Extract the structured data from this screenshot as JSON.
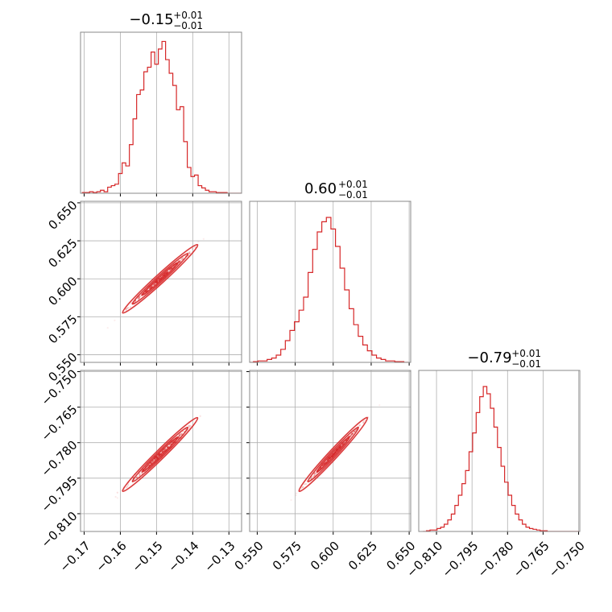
{
  "chart_data": {
    "type": "corner",
    "line_color": "#d62728",
    "grid": true,
    "parameters": [
      {
        "id": "p1",
        "title": {
          "value": "−0.15",
          "plus": "+0.01",
          "minus": "−0.01"
        },
        "range": [
          -0.171,
          -0.1265
        ],
        "ticks": [
          -0.17,
          -0.16,
          -0.15,
          -0.14,
          -0.13
        ],
        "tick_labels": [
          "−0.17",
          "−0.16",
          "−0.15",
          "−0.14",
          "−0.13"
        ],
        "hist_x": [
          -0.17,
          -0.169,
          -0.168,
          -0.167,
          -0.166,
          -0.165,
          -0.164,
          -0.163,
          -0.162,
          -0.161,
          -0.16,
          -0.159,
          -0.158,
          -0.157,
          -0.156,
          -0.155,
          -0.154,
          -0.153,
          -0.152,
          -0.151,
          -0.15,
          -0.149,
          -0.148,
          -0.147,
          -0.146,
          -0.145,
          -0.144,
          -0.143,
          -0.142,
          -0.141,
          -0.14,
          -0.139,
          -0.138,
          -0.137,
          -0.136,
          -0.135,
          -0.134,
          -0.133,
          -0.132,
          -0.131,
          -0.13,
          -0.129,
          -0.128,
          -0.127
        ],
        "hist_y": [
          0.005,
          0.005,
          0.01,
          0.005,
          0.01,
          0.02,
          0.01,
          0.04,
          0.05,
          0.06,
          0.13,
          0.2,
          0.18,
          0.32,
          0.49,
          0.65,
          0.68,
          0.8,
          0.83,
          0.93,
          0.85,
          0.95,
          1.0,
          0.88,
          0.79,
          0.71,
          0.55,
          0.57,
          0.34,
          0.17,
          0.11,
          0.12,
          0.05,
          0.035,
          0.02,
          0.01,
          0.01,
          0.005,
          0.005,
          0.005,
          0,
          0,
          0,
          0
        ],
        "hist_ymax": 1.05
      },
      {
        "id": "p2",
        "title": {
          "value": "0.60",
          "plus": "+0.01",
          "minus": "−0.01"
        },
        "range": [
          0.545,
          0.651
        ],
        "ticks": [
          0.55,
          0.575,
          0.6,
          0.625,
          0.65
        ],
        "tick_labels": [
          "0.550",
          "0.575",
          "0.600",
          "0.625",
          "0.650"
        ],
        "hist_x": [
          0.546,
          0.549,
          0.552,
          0.555,
          0.558,
          0.561,
          0.564,
          0.567,
          0.57,
          0.573,
          0.576,
          0.579,
          0.582,
          0.585,
          0.588,
          0.591,
          0.594,
          0.597,
          0.6,
          0.603,
          0.606,
          0.609,
          0.612,
          0.615,
          0.618,
          0.621,
          0.624,
          0.627,
          0.63,
          0.633,
          0.636,
          0.639,
          0.642,
          0.645,
          0.648
        ],
        "hist_y": [
          0,
          0.005,
          0.01,
          0.01,
          0.02,
          0.03,
          0.05,
          0.09,
          0.15,
          0.22,
          0.28,
          0.36,
          0.45,
          0.62,
          0.78,
          0.9,
          0.97,
          1.0,
          0.92,
          0.8,
          0.65,
          0.5,
          0.37,
          0.26,
          0.18,
          0.12,
          0.08,
          0.05,
          0.03,
          0.02,
          0.01,
          0.01,
          0.005,
          0.005,
          0
        ],
        "hist_ymax": 1.1
      },
      {
        "id": "p3",
        "title": {
          "value": "−0.79",
          "plus": "+0.01",
          "minus": "−0.01"
        },
        "range": [
          -0.8175,
          -0.7495
        ],
        "ticks": [
          -0.81,
          -0.795,
          -0.78,
          -0.765,
          -0.75
        ],
        "tick_labels": [
          "−0.810",
          "−0.795",
          "−0.780",
          "−0.765",
          "−0.750"
        ],
        "hist_x": [
          -0.815,
          -0.8135,
          -0.812,
          -0.8105,
          -0.809,
          -0.8075,
          -0.806,
          -0.8045,
          -0.803,
          -0.8015,
          -0.8,
          -0.7985,
          -0.797,
          -0.7955,
          -0.794,
          -0.7925,
          -0.791,
          -0.7895,
          -0.788,
          -0.7865,
          -0.785,
          -0.7835,
          -0.782,
          -0.7805,
          -0.779,
          -0.7775,
          -0.776,
          -0.7745,
          -0.773,
          -0.7715,
          -0.77,
          -0.7685,
          -0.767,
          -0.7655,
          -0.764,
          -0.7625,
          -0.761,
          -0.7595,
          -0.758,
          -0.7565,
          -0.755,
          -0.7535,
          -0.752,
          -0.7505
        ],
        "hist_y": [
          0,
          0.005,
          0.01,
          0.01,
          0.02,
          0.03,
          0.05,
          0.08,
          0.12,
          0.18,
          0.25,
          0.33,
          0.42,
          0.55,
          0.68,
          0.82,
          0.93,
          1.0,
          0.95,
          0.85,
          0.72,
          0.58,
          0.45,
          0.34,
          0.25,
          0.18,
          0.12,
          0.08,
          0.05,
          0.03,
          0.02,
          0.015,
          0.01,
          0.005,
          0.005,
          0,
          0,
          0,
          0,
          0,
          0,
          0,
          0,
          0
        ],
        "hist_ymax": 1.1
      }
    ],
    "pairs": [
      {
        "x": "p1",
        "y": "p2",
        "center": [
          -0.149,
          0.6
        ],
        "axis": [
          0.012,
          0.026
        ],
        "spread": 0.0018,
        "slope": 0.025
      },
      {
        "x": "p1",
        "y": "p3",
        "center": [
          -0.149,
          -0.785
        ],
        "axis": [
          0.012,
          0.018
        ],
        "spread": 0.0018,
        "slope": 0.018
      },
      {
        "x": "p2",
        "y": "p3",
        "center": [
          0.6,
          -0.785
        ],
        "axis": [
          0.026,
          0.018
        ],
        "spread": 0.0012,
        "slope": 0.018
      }
    ]
  }
}
